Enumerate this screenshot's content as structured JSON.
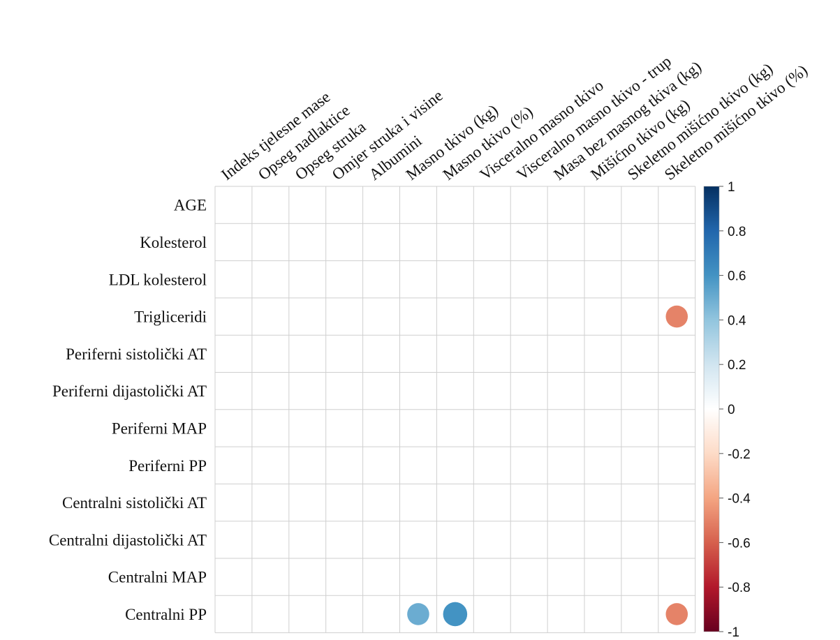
{
  "chart_data": {
    "type": "heatmap",
    "subtype": "correlation-circles",
    "rows": [
      "AGE",
      "Kolesterol",
      "LDL kolesterol",
      "Trigliceridi",
      "Periferni sistolički AT",
      "Periferni dijastolički AT",
      "Periferni MAP",
      "Periferni PP",
      "Centralni sistolički AT",
      "Centralni dijastolički AT",
      "Centralni MAP",
      "Centralni PP"
    ],
    "columns": [
      "Indeks tjelesne mase",
      "Opseg nadlaktice",
      "Opseg struka",
      "Omjer struka i visine",
      "Albumini",
      "Masno tkivo (kg)",
      "Masno tkivo (%)",
      "Visceralno masno tkivo",
      "Visceralno masno tkivo - trup",
      "Masa bez masnog tkiva (kg)",
      "Mišićno tkivo (kg)",
      "Skeletno mišićno tkivo (kg)",
      "Skeletno mišićno tkivo (%)"
    ],
    "cells": [
      {
        "row": "Trigliceridi",
        "column": "Skeletno mišićno tkivo (%)",
        "value": -0.5
      },
      {
        "row": "Centralni PP",
        "column": "Masno tkivo (kg)",
        "value": 0.5
      },
      {
        "row": "Centralni PP",
        "column": "Masno tkivo (%)",
        "value": 0.6
      },
      {
        "row": "Centralni PP",
        "column": "Skeletno mišićno tkivo (%)",
        "value": -0.5
      }
    ],
    "legend": {
      "range": [
        -1,
        1
      ],
      "ticks": [
        "1",
        "0.8",
        "0.6",
        "0.4",
        "0.2",
        "0",
        "-0.2",
        "-0.4",
        "-0.6",
        "-0.8",
        "-1"
      ],
      "colors": [
        "#67001F",
        "#B2182B",
        "#D6604D",
        "#F4A582",
        "#FDDBC7",
        "#FFFFFF",
        "#D1E5F0",
        "#92C5DE",
        "#4393C3",
        "#2166AC",
        "#053061"
      ],
      "placement": "right"
    },
    "grid": true
  }
}
